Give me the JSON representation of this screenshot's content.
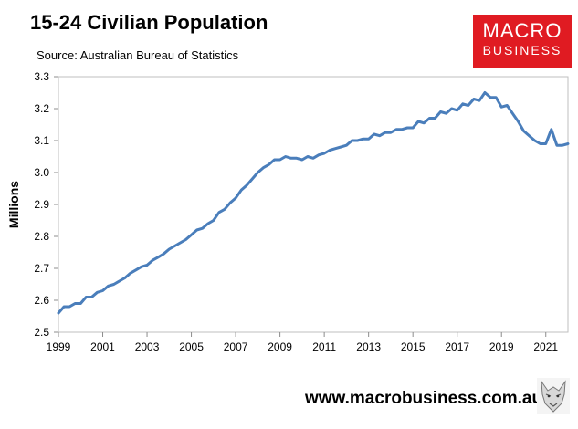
{
  "header": {
    "title": "15-24 Civilian Population",
    "subtitle": "Source: Australian Bureau of Statistics"
  },
  "logo": {
    "line1": "MACRO",
    "line2": "BUSINESS",
    "color": "#e01b22"
  },
  "footer": {
    "url": "www.macrobusiness.com.au",
    "icon": "wolf-logo-icon"
  },
  "chart_data": {
    "type": "line",
    "title": "15-24 Civilian Population",
    "ylabel": "Millions",
    "xlabel": "",
    "ylim": [
      2.5,
      3.3
    ],
    "xlim": [
      1999,
      2022
    ],
    "yticks": [
      "2.5",
      "2.6",
      "2.7",
      "2.8",
      "2.9",
      "3.0",
      "3.1",
      "3.2",
      "3.3"
    ],
    "xticks": [
      "1999",
      "2001",
      "2003",
      "2005",
      "2007",
      "2009",
      "2011",
      "2013",
      "2015",
      "2017",
      "2019",
      "2021"
    ],
    "grid": false,
    "line_color": "#4a7ebb",
    "series": [
      {
        "x": [
          1999.0,
          1999.25,
          1999.5,
          1999.75,
          2000.0,
          2000.25,
          2000.5,
          2000.75,
          2001.0,
          2001.25,
          2001.5,
          2001.75,
          2002.0,
          2002.25,
          2002.5,
          2002.75,
          2003.0,
          2003.25,
          2003.5,
          2003.75,
          2004.0,
          2004.25,
          2004.5,
          2004.75,
          2005.0,
          2005.25,
          2005.5,
          2005.75,
          2006.0,
          2006.25,
          2006.5,
          2006.75,
          2007.0,
          2007.25,
          2007.5,
          2007.75,
          2008.0,
          2008.25,
          2008.5,
          2008.75,
          2009.0,
          2009.25,
          2009.5,
          2009.75,
          2010.0,
          2010.25,
          2010.5,
          2010.75,
          2011.0,
          2011.25,
          2011.5,
          2011.75,
          2012.0,
          2012.25,
          2012.5,
          2012.75,
          2013.0,
          2013.25,
          2013.5,
          2013.75,
          2014.0,
          2014.25,
          2014.5,
          2014.75,
          2015.0,
          2015.25,
          2015.5,
          2015.75,
          2016.0,
          2016.25,
          2016.5,
          2016.75,
          2017.0,
          2017.25,
          2017.5,
          2017.75,
          2018.0,
          2018.25,
          2018.5,
          2018.75,
          2019.0,
          2019.25,
          2019.5,
          2019.75,
          2020.0,
          2020.25,
          2020.5,
          2020.75,
          2021.0,
          2021.25,
          2021.5,
          2021.75,
          2022.0
        ],
        "values": [
          2.56,
          2.58,
          2.58,
          2.59,
          2.59,
          2.61,
          2.61,
          2.625,
          2.63,
          2.645,
          2.65,
          2.66,
          2.67,
          2.685,
          2.695,
          2.705,
          2.71,
          2.725,
          2.735,
          2.745,
          2.76,
          2.77,
          2.78,
          2.79,
          2.805,
          2.82,
          2.825,
          2.84,
          2.85,
          2.875,
          2.885,
          2.905,
          2.92,
          2.945,
          2.96,
          2.98,
          3.0,
          3.015,
          3.025,
          3.04,
          3.04,
          3.05,
          3.045,
          3.045,
          3.04,
          3.05,
          3.045,
          3.055,
          3.06,
          3.07,
          3.075,
          3.08,
          3.085,
          3.1,
          3.1,
          3.105,
          3.105,
          3.12,
          3.115,
          3.125,
          3.125,
          3.135,
          3.135,
          3.14,
          3.14,
          3.16,
          3.155,
          3.17,
          3.17,
          3.19,
          3.185,
          3.2,
          3.195,
          3.215,
          3.21,
          3.23,
          3.225,
          3.25,
          3.235,
          3.235,
          3.205,
          3.21,
          3.185,
          3.16,
          3.13,
          3.115,
          3.1,
          3.09,
          3.09,
          3.135,
          3.085,
          3.085,
          3.09
        ]
      }
    ]
  }
}
